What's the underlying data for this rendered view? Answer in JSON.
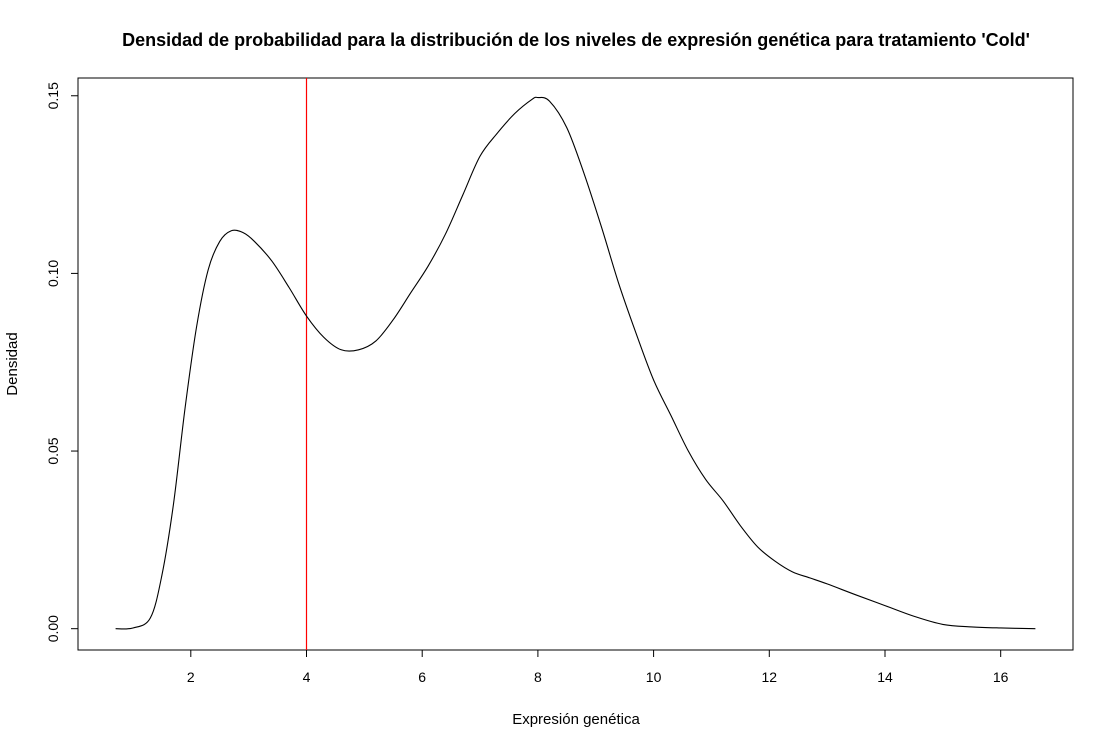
{
  "chart_data": {
    "type": "line",
    "title": "Densidad de probabilidad para la distribución de los niveles de expresión genética para tratamiento 'Cold'",
    "xlabel": "Expresión genética",
    "ylabel": "Densidad",
    "xlim": [
      0.05,
      17.25
    ],
    "ylim": [
      -0.006,
      0.155
    ],
    "x_ticks": [
      2,
      4,
      6,
      8,
      10,
      12,
      14,
      16
    ],
    "x_tick_labels": [
      "2",
      "4",
      "6",
      "8",
      "10",
      "12",
      "14",
      "16"
    ],
    "y_ticks": [
      0.0,
      0.05,
      0.1,
      0.15
    ],
    "y_tick_labels": [
      "0.00",
      "0.05",
      "0.10",
      "0.15"
    ],
    "grid": false,
    "series": [
      {
        "color": "#000000",
        "x": [
          0.7,
          1.0,
          1.3,
          1.5,
          1.7,
          1.9,
          2.1,
          2.3,
          2.5,
          2.7,
          2.9,
          3.1,
          3.4,
          3.7,
          4.0,
          4.3,
          4.6,
          4.9,
          5.2,
          5.5,
          5.8,
          6.1,
          6.4,
          6.7,
          7.0,
          7.3,
          7.6,
          7.9,
          8.0,
          8.2,
          8.5,
          8.8,
          9.1,
          9.4,
          9.7,
          10.0,
          10.3,
          10.6,
          10.9,
          11.2,
          11.5,
          11.8,
          12.1,
          12.4,
          12.7,
          13.0,
          13.5,
          14.0,
          14.5,
          15.0,
          15.5,
          16.0,
          16.6
        ],
        "values": [
          0.0,
          0.0002,
          0.003,
          0.015,
          0.035,
          0.062,
          0.085,
          0.101,
          0.109,
          0.112,
          0.1115,
          0.109,
          0.1035,
          0.096,
          0.088,
          0.082,
          0.0785,
          0.0785,
          0.081,
          0.087,
          0.0945,
          0.102,
          0.111,
          0.122,
          0.133,
          0.1395,
          0.145,
          0.149,
          0.1495,
          0.1485,
          0.141,
          0.128,
          0.113,
          0.097,
          0.083,
          0.07,
          0.06,
          0.05,
          0.042,
          0.036,
          0.029,
          0.023,
          0.019,
          0.016,
          0.0143,
          0.0126,
          0.0095,
          0.0065,
          0.0035,
          0.0012,
          0.0005,
          0.0002,
          0.0
        ]
      }
    ],
    "vertical_line": {
      "x": 4,
      "color": "#ff0000"
    }
  }
}
